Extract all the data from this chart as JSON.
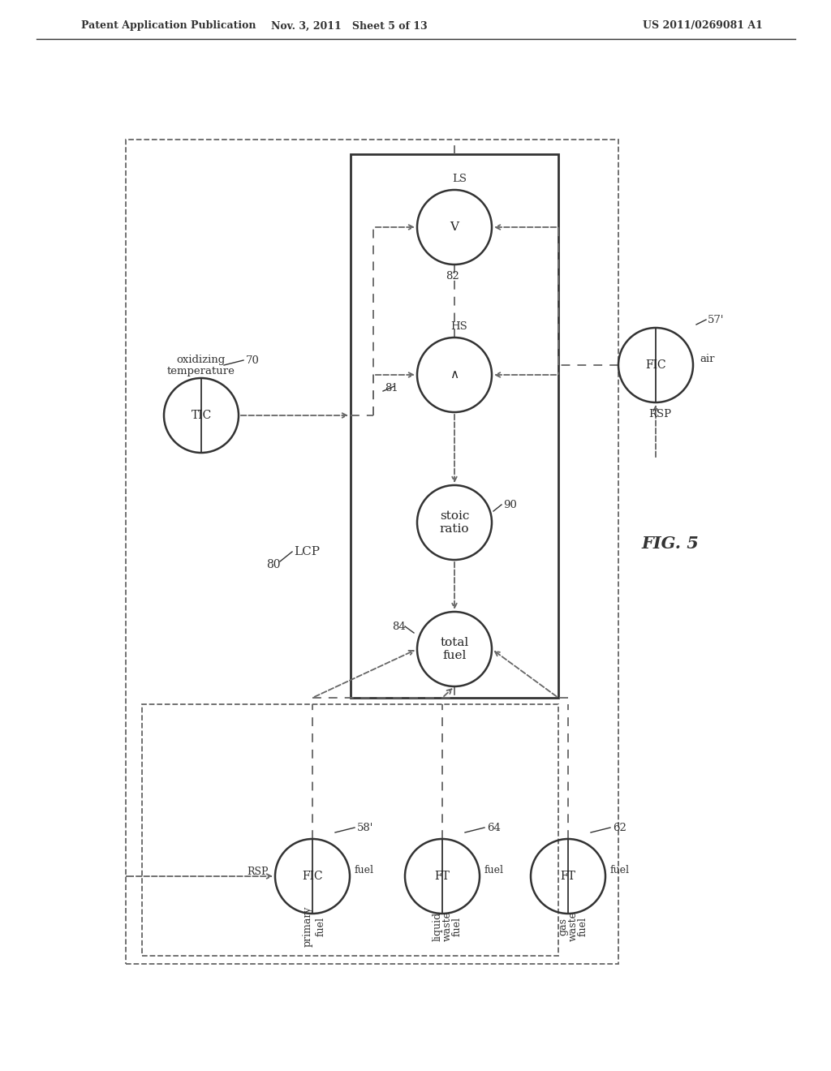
{
  "header_left": "Patent Application Publication",
  "header_mid": "Nov. 3, 2011   Sheet 5 of 13",
  "header_right": "US 2011/0269081 A1",
  "fig_label": "FIG. 5",
  "bg": "#ffffff",
  "lc": "#333333",
  "dc": "#666666"
}
